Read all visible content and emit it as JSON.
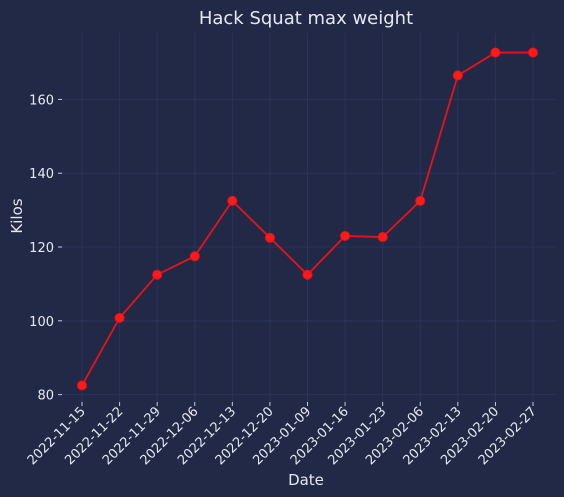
{
  "chart_data": {
    "type": "line",
    "title": "Hack Squat max weight",
    "xlabel": "Date",
    "ylabel": "Kilos",
    "x": [
      "2022-11-15",
      "2022-11-22",
      "2022-11-29",
      "2022-12-06",
      "2022-12-13",
      "2022-12-20",
      "2023-01-09",
      "2023-01-16",
      "2023-01-23",
      "2023-02-06",
      "2023-02-13",
      "2023-02-20",
      "2023-02-27"
    ],
    "series": [
      {
        "values": [
          82.5,
          100.8,
          112.5,
          117.5,
          132.5,
          122.5,
          112.5,
          123,
          122.7,
          132.5,
          166.5,
          172.7,
          172.7
        ]
      }
    ],
    "yticks": [
      80,
      100,
      120,
      140,
      160
    ],
    "ylim": [
      78,
      178
    ],
    "grid": true,
    "colors": {
      "background": "#212946",
      "line": "#e8121c",
      "marker": "#ff1a1a",
      "grid": "#2a3459",
      "text": "#e6e9f2"
    }
  }
}
